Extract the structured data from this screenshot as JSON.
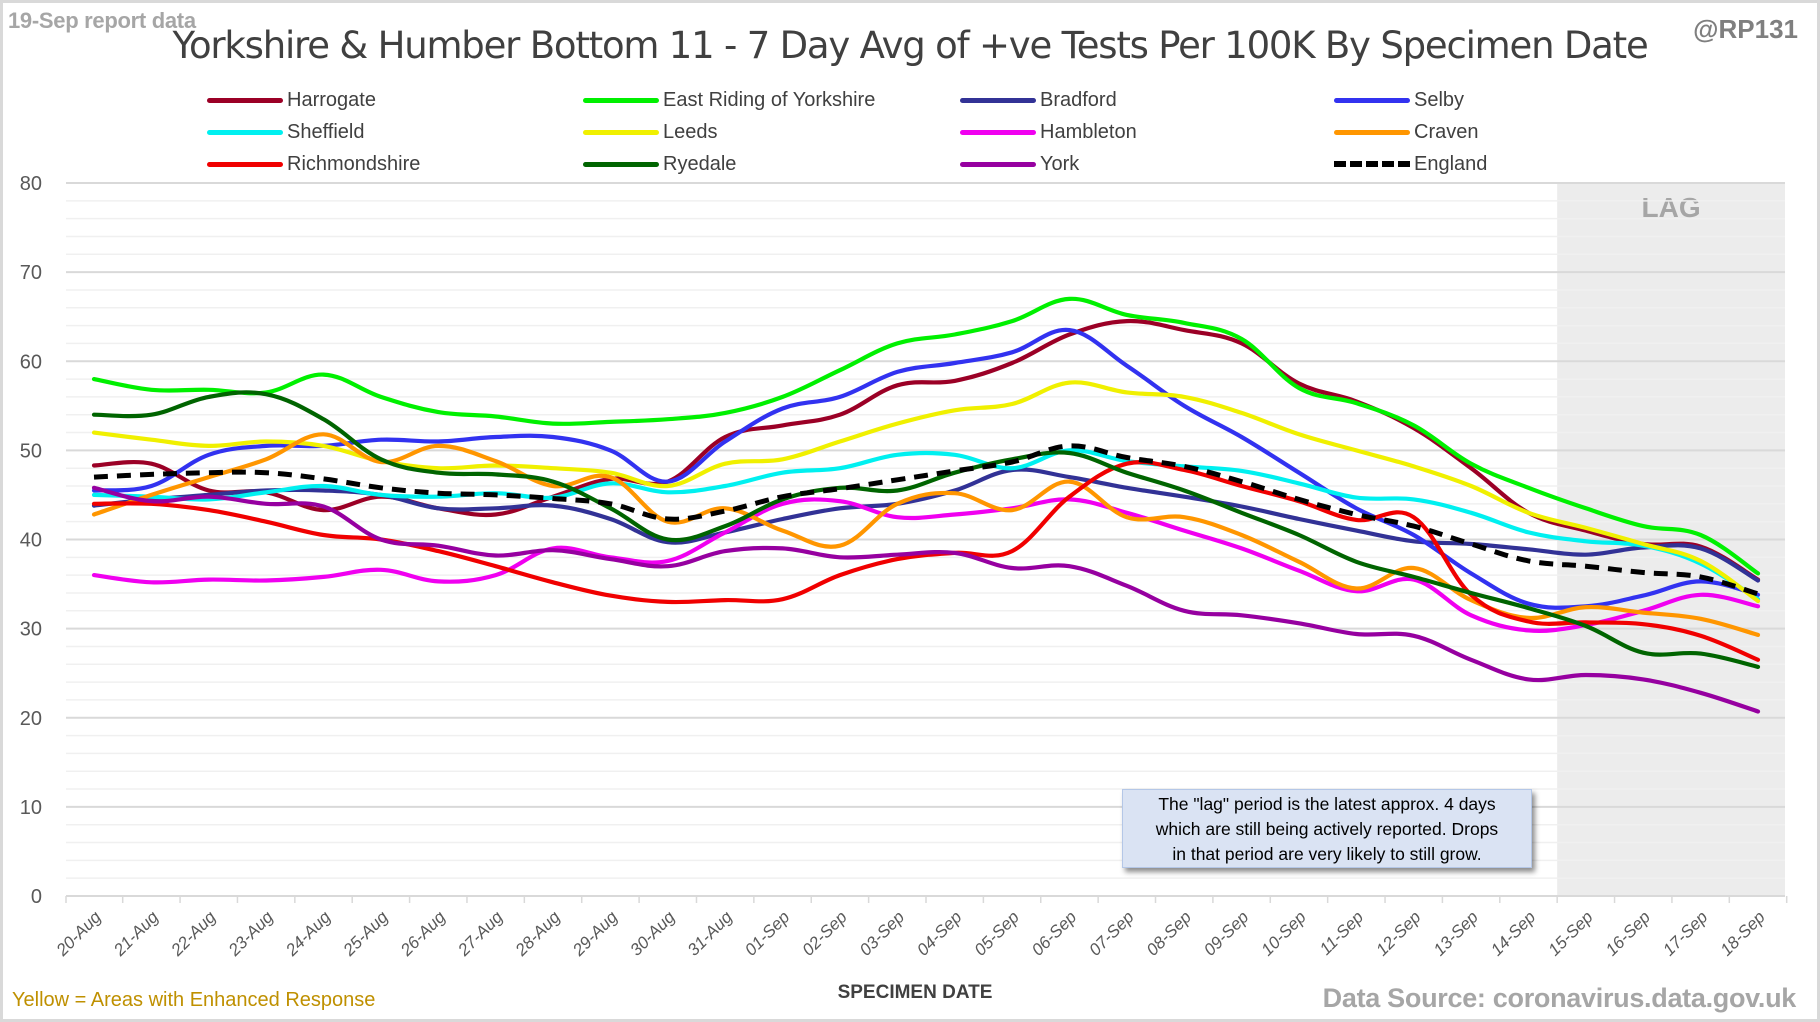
{
  "header": {
    "report_tag": "19-Sep report data",
    "title": "Yorkshire & Humber Bottom 11 - 7 Day Avg of +ve Tests Per 100K By Specimen Date",
    "author": "@RP131"
  },
  "annotation": {
    "lines": [
      "The \"lag\" period is the latest approx. 4 days",
      "which are still being actively reported.  Drops",
      "in that period are very likely to still grow."
    ]
  },
  "footer": {
    "xlabel": "SPECIMEN DATE",
    "footnote": "Yellow = Areas with Enhanced Response",
    "source": "Data Source: coronavirus.data.gov.uk"
  },
  "chart_data": {
    "type": "line",
    "title": "Yorkshire & Humber Bottom 11 - 7 Day Avg of +ve Tests Per 100K By Specimen Date",
    "xlabel": "SPECIMEN DATE",
    "ylabel": "",
    "ylim": [
      0,
      80
    ],
    "yticks": [
      0,
      10,
      20,
      30,
      40,
      50,
      60,
      70,
      80
    ],
    "grid": true,
    "legend_position": "top",
    "lag_region": {
      "label": "LAG",
      "from": "15-Sep",
      "to": "18-Sep"
    },
    "x": [
      "20-Aug",
      "21-Aug",
      "22-Aug",
      "23-Aug",
      "24-Aug",
      "25-Aug",
      "26-Aug",
      "27-Aug",
      "28-Aug",
      "29-Aug",
      "30-Aug",
      "31-Aug",
      "01-Sep",
      "02-Sep",
      "03-Sep",
      "04-Sep",
      "05-Sep",
      "06-Sep",
      "07-Sep",
      "08-Sep",
      "09-Sep",
      "10-Sep",
      "11-Sep",
      "12-Sep",
      "13-Sep",
      "14-Sep",
      "15-Sep",
      "16-Sep",
      "17-Sep",
      "18-Sep"
    ],
    "series": [
      {
        "name": "Harrogate",
        "color": "#9b0026",
        "dashed": false,
        "values": [
          48.3,
          48.5,
          45.5,
          45.3,
          43.3,
          44.8,
          43.5,
          42.8,
          44.8,
          46.8,
          46.5,
          51.5,
          52.8,
          54,
          57.3,
          57.8,
          59.8,
          63,
          64.5,
          63.5,
          62,
          57.5,
          55.5,
          52.5,
          48,
          43,
          41,
          39.5,
          39.2,
          35.5
        ]
      },
      {
        "name": "East Riding of Yorkshire",
        "color": "#00f000",
        "dashed": false,
        "values": [
          58,
          56.8,
          56.8,
          56.5,
          58.5,
          56,
          54.3,
          53.8,
          53,
          53.2,
          53.5,
          54.2,
          56,
          59,
          62,
          63,
          64.5,
          67,
          65.2,
          64.3,
          62.5,
          57,
          55.3,
          52.8,
          48.5,
          45.8,
          43.5,
          41.5,
          40.5,
          36.2
        ]
      },
      {
        "name": "Bradford",
        "color": "#323296",
        "dashed": false,
        "values": [
          43.8,
          44.5,
          45,
          45.5,
          45.5,
          45,
          43.5,
          43.5,
          43.8,
          42.3,
          39.7,
          40.8,
          42.3,
          43.5,
          44,
          45.5,
          47.8,
          47,
          45.8,
          44.8,
          43.7,
          42.3,
          41,
          39.8,
          39.5,
          38.9,
          38.3,
          39.1,
          39,
          35.4
        ]
      },
      {
        "name": "Selby",
        "color": "#3232f0",
        "dashed": false,
        "values": [
          45.5,
          46,
          49.5,
          50.5,
          50.5,
          51.2,
          51,
          51.5,
          51.5,
          50,
          46.5,
          51,
          54.7,
          56,
          58.8,
          59.8,
          61,
          63.5,
          59.5,
          55,
          51.5,
          47.5,
          43.5,
          40.5,
          36.2,
          32.8,
          32.5,
          33.7,
          35.3,
          33.8
        ]
      },
      {
        "name": "Sheffield",
        "color": "#00f0f0",
        "dashed": false,
        "values": [
          45,
          44.8,
          44.5,
          45.3,
          46,
          45,
          44.8,
          45.2,
          44.7,
          46.3,
          45.3,
          46,
          47.5,
          48,
          49.5,
          49.5,
          48,
          50,
          48.8,
          48.2,
          47.7,
          46.3,
          44.7,
          44.5,
          43,
          40.8,
          39.8,
          39.3,
          37.3,
          33.3
        ]
      },
      {
        "name": "Leeds",
        "color": "#f0f000",
        "dashed": false,
        "values": [
          52,
          51.2,
          50.5,
          51,
          50.5,
          48.8,
          48,
          48.3,
          48,
          47.5,
          46,
          48.5,
          49,
          51,
          53,
          54.5,
          55.2,
          57.6,
          56.5,
          56,
          54.2,
          51.8,
          50,
          48.2,
          46,
          43,
          41.3,
          39.5,
          37.6,
          33.1
        ]
      },
      {
        "name": "Hambleton",
        "color": "#f000f0",
        "dashed": false,
        "values": [
          36,
          35.2,
          35.5,
          35.4,
          35.8,
          36.6,
          35.3,
          36,
          39,
          38,
          37.6,
          40.8,
          44,
          44.3,
          42.5,
          42.8,
          43.5,
          44.5,
          43,
          41,
          39,
          36.5,
          34.2,
          35.5,
          31.5,
          29.8,
          30.4,
          32,
          33.8,
          32.5
        ]
      },
      {
        "name": "Craven",
        "color": "#ff9600",
        "dashed": false,
        "values": [
          42.8,
          45,
          47,
          49,
          51.8,
          48.7,
          50.5,
          48.8,
          46,
          47,
          42,
          43.5,
          41,
          39.3,
          44,
          45.2,
          43.3,
          46.5,
          42.5,
          42.5,
          40.5,
          37.5,
          34.5,
          36.8,
          33.2,
          31.2,
          32.4,
          31.8,
          31.1,
          29.3
        ]
      },
      {
        "name": "Richmondshire",
        "color": "#f00000",
        "dashed": false,
        "values": [
          44,
          44,
          43.3,
          42,
          40.5,
          40,
          38.7,
          37,
          35.2,
          33.7,
          33,
          33.2,
          33.3,
          36,
          37.8,
          38.5,
          38.7,
          44.8,
          48.5,
          47.8,
          46,
          44.3,
          42.2,
          42.5,
          33.8,
          30.8,
          30.7,
          30.5,
          29.2,
          26.5
        ]
      },
      {
        "name": "Ryedale",
        "color": "#006400",
        "dashed": false,
        "values": [
          54,
          54,
          56,
          56.3,
          53.5,
          49,
          47.5,
          47.3,
          46.5,
          43.5,
          40,
          41.5,
          44.5,
          45.8,
          45.5,
          47.5,
          49,
          49.7,
          47.5,
          45.5,
          43,
          40.5,
          37.5,
          35.8,
          34,
          32.3,
          30.3,
          27.3,
          27.2,
          25.7
        ]
      },
      {
        "name": "York",
        "color": "#9600a0",
        "dashed": false,
        "values": [
          45.8,
          44.3,
          44.8,
          44,
          43.7,
          40,
          39.3,
          38.2,
          38.8,
          37.8,
          37,
          38.7,
          39,
          38,
          38.3,
          38.5,
          36.8,
          37,
          34.8,
          32,
          31.5,
          30.6,
          29.4,
          29.2,
          26.5,
          24.3,
          24.8,
          24.3,
          22.8,
          20.7
        ]
      },
      {
        "name": "England",
        "color": "#000000",
        "dashed": true,
        "values": [
          47,
          47.3,
          47.5,
          47.5,
          46.8,
          45.8,
          45.2,
          45,
          44.6,
          44,
          42.3,
          43.2,
          44.8,
          45.7,
          46.7,
          47.7,
          48.7,
          50.5,
          49.2,
          48.2,
          46.5,
          44.5,
          42.8,
          41.5,
          39.5,
          37.6,
          37,
          36.3,
          35.8,
          33.9
        ]
      }
    ]
  }
}
